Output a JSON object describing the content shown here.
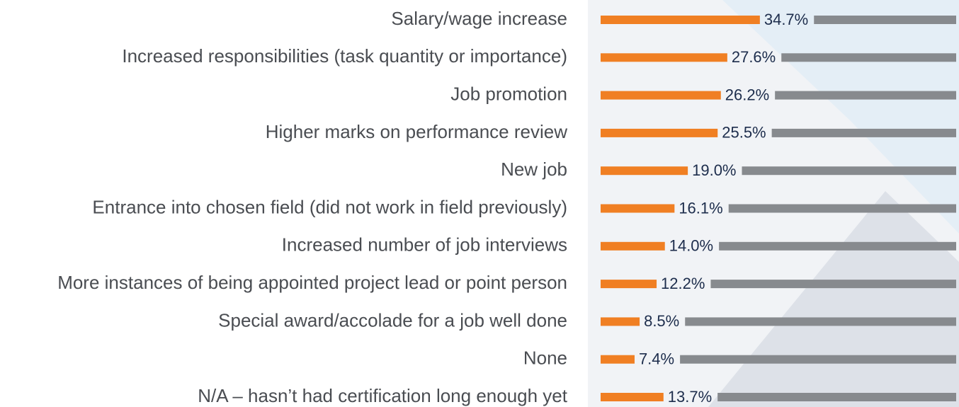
{
  "chart_data": {
    "type": "bar",
    "categories": [
      "Salary/wage increase",
      "Increased responsibilities (task quantity or importance)",
      "Job promotion",
      "Higher marks on performance review",
      "New job",
      "Entrance into chosen field (did not work in field previously)",
      "Increased number of job interviews",
      "More instances of being appointed project lead or point person",
      "Special award/accolade for a job well done",
      "None",
      "N/A – hasn’t had certification long enough yet"
    ],
    "values": [
      34.7,
      27.6,
      26.2,
      25.5,
      19.0,
      16.1,
      14.0,
      12.2,
      8.5,
      7.4,
      13.7
    ],
    "value_labels": [
      "34.7%",
      "27.6%",
      "26.2%",
      "25.5%",
      "19.0%",
      "16.1%",
      "14.0%",
      "12.2%",
      "8.5%",
      "7.4%",
      "13.7%"
    ],
    "color": "#f07f23"
  }
}
